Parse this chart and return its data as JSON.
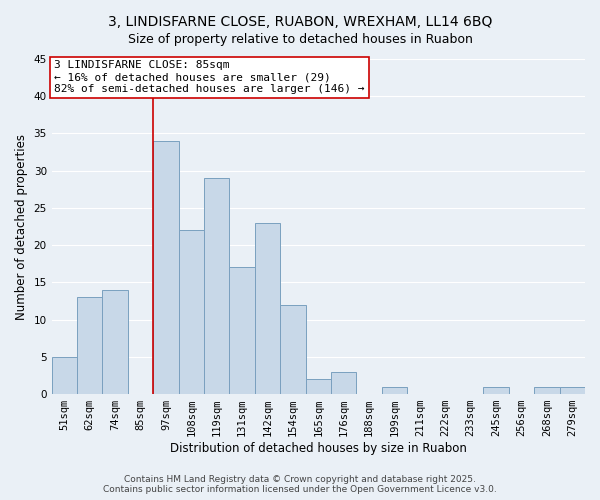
{
  "title": "3, LINDISFARNE CLOSE, RUABON, WREXHAM, LL14 6BQ",
  "subtitle": "Size of property relative to detached houses in Ruabon",
  "xlabel": "Distribution of detached houses by size in Ruabon",
  "ylabel": "Number of detached properties",
  "bin_labels": [
    "51sqm",
    "62sqm",
    "74sqm",
    "85sqm",
    "97sqm",
    "108sqm",
    "119sqm",
    "131sqm",
    "142sqm",
    "154sqm",
    "165sqm",
    "176sqm",
    "188sqm",
    "199sqm",
    "211sqm",
    "222sqm",
    "233sqm",
    "245sqm",
    "256sqm",
    "268sqm",
    "279sqm"
  ],
  "bar_values": [
    5,
    13,
    14,
    0,
    34,
    22,
    29,
    17,
    23,
    12,
    2,
    3,
    0,
    1,
    0,
    0,
    0,
    1,
    0,
    1,
    1
  ],
  "bar_color": "#c8d8e8",
  "bar_edge_color": "#7aa0bf",
  "vline_x": 3.5,
  "vline_color": "#cc0000",
  "annotation_text": "3 LINDISFARNE CLOSE: 85sqm\n← 16% of detached houses are smaller (29)\n82% of semi-detached houses are larger (146) →",
  "annotation_box_color": "#ffffff",
  "annotation_box_edge": "#cc0000",
  "ylim": [
    0,
    45
  ],
  "yticks": [
    0,
    5,
    10,
    15,
    20,
    25,
    30,
    35,
    40,
    45
  ],
  "footer1": "Contains HM Land Registry data © Crown copyright and database right 2025.",
  "footer2": "Contains public sector information licensed under the Open Government Licence v3.0.",
  "background_color": "#eaf0f6",
  "plot_bg_color": "#eaf0f6",
  "grid_color": "#ffffff",
  "title_fontsize": 10,
  "subtitle_fontsize": 9,
  "axis_label_fontsize": 8.5,
  "tick_fontsize": 7.5,
  "annotation_fontsize": 8,
  "footer_fontsize": 6.5
}
